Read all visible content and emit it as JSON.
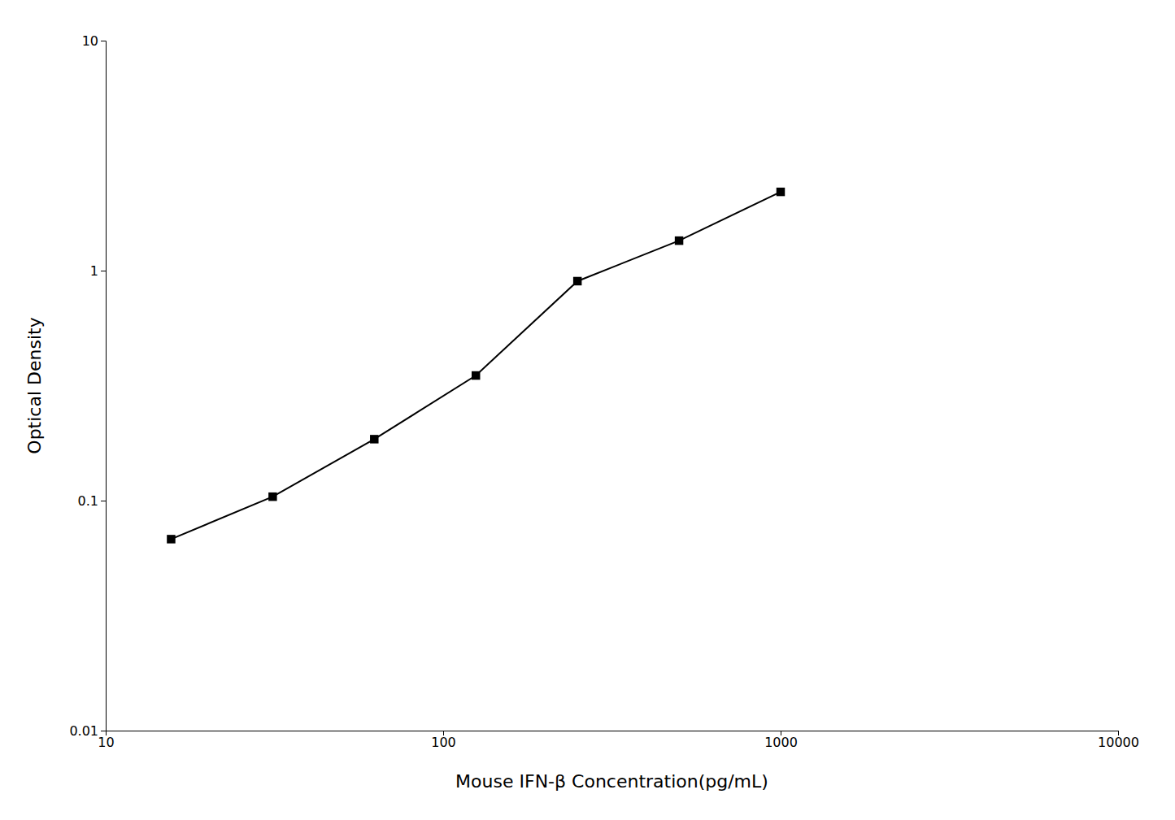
{
  "chart_data": {
    "type": "line",
    "x": [
      15.625,
      31.25,
      62.5,
      125,
      250,
      500,
      1000
    ],
    "values": [
      0.068,
      0.104,
      0.185,
      0.35,
      0.9,
      1.35,
      2.2
    ],
    "xlabel": "Mouse IFN-β Concentration(pg/mL)",
    "ylabel": "Optical Density",
    "xlim": [
      10,
      10000
    ],
    "ylim": [
      0.01,
      10
    ],
    "xticks": [
      10,
      100,
      1000,
      10000
    ],
    "yticks": [
      0.01,
      0.1,
      1,
      10
    ],
    "log": true,
    "grid": false,
    "color": "#000000",
    "marker": "square"
  }
}
